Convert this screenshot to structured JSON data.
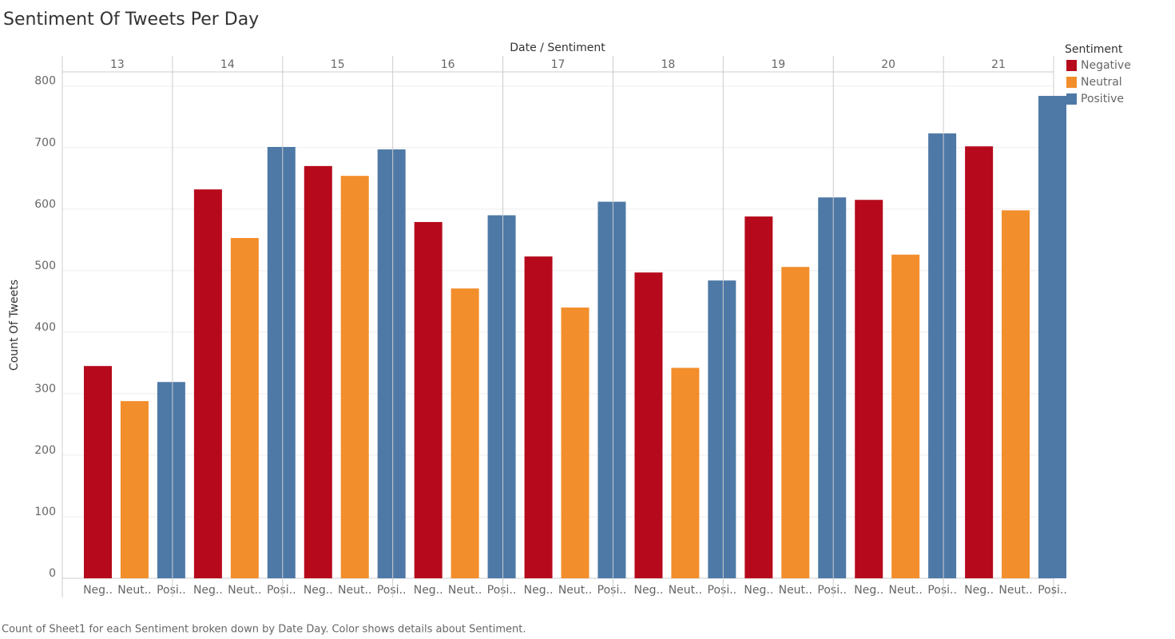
{
  "chart_data": {
    "type": "bar",
    "title": "Sentiment Of Tweets Per Day",
    "header": "Date / Sentiment",
    "ylabel": "Count Of Tweets",
    "caption": "Count of Sheet1 for each Sentiment broken down by Date Day.  Color shows details about Sentiment.",
    "legend_title": "Sentiment",
    "categories": [
      "13",
      "14",
      "15",
      "16",
      "17",
      "18",
      "19",
      "20",
      "21"
    ],
    "sub_labels": [
      "Neg..",
      "Neut..",
      "Posi.."
    ],
    "series": [
      {
        "name": "Negative",
        "color": "#b60a1c",
        "values": [
          345,
          632,
          670,
          579,
          523,
          497,
          588,
          615,
          702
        ]
      },
      {
        "name": "Neutral",
        "color": "#f28e2b",
        "values": [
          288,
          553,
          654,
          471,
          440,
          342,
          506,
          526,
          598
        ]
      },
      {
        "name": "Positive",
        "color": "#4e79a7",
        "values": [
          319,
          701,
          697,
          590,
          612,
          484,
          619,
          723,
          784
        ]
      }
    ],
    "ylim": [
      0,
      823
    ],
    "yticks": [
      0,
      100,
      200,
      300,
      400,
      500,
      600,
      700,
      800
    ],
    "grid": true
  }
}
